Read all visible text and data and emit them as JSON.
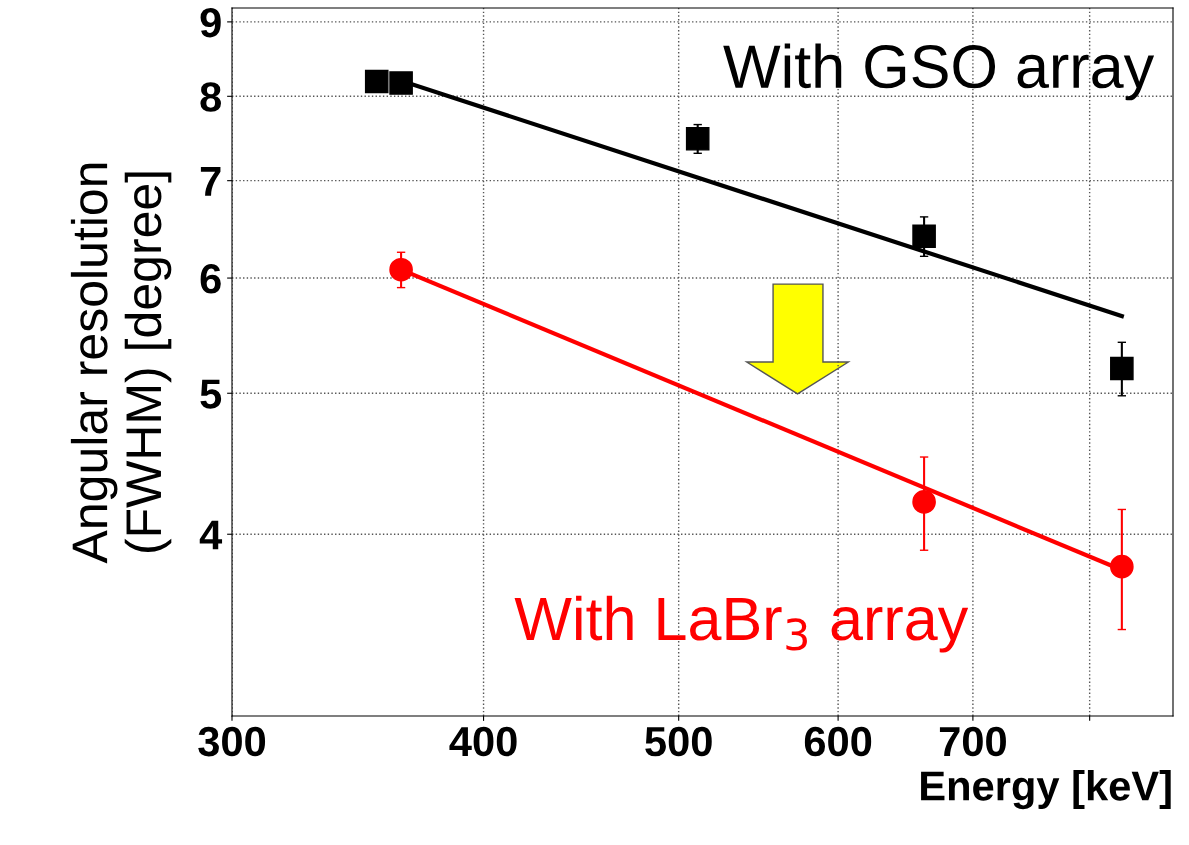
{
  "chart_data": {
    "type": "scatter",
    "xlabel": "Energy [keV]",
    "ylabel": "Angular resolution\n(FWHM) [degree]",
    "log": "xy",
    "grid": true,
    "legend": false,
    "xlim": [
      300,
      880
    ],
    "xticks": [
      300,
      400,
      500,
      600,
      700,
      {
        "value": 800,
        "label": null
      }
    ],
    "ylim": [
      3,
      9.2
    ],
    "yticks": [
      4,
      5,
      6,
      7,
      8,
      9
    ],
    "series": [
      {
        "name": "With GSO array",
        "color": "#000000",
        "marker": "square",
        "x": [
          354,
          364,
          511,
          662,
          830
        ],
        "values": [
          8.19,
          8.17,
          7.48,
          6.41,
          5.2
        ],
        "errors": [
          0.1,
          0.1,
          0.17,
          0.2,
          0.22
        ]
      },
      {
        "type": "line",
        "color": "#000000",
        "x": [
          364,
          830
        ],
        "values": [
          8.2,
          5.65
        ]
      },
      {
        "name": "With LaBr$_{3}$ array",
        "color": "#ff0000",
        "marker": "circle",
        "x": [
          364,
          662,
          830
        ],
        "values": [
          6.08,
          4.21,
          3.8
        ],
        "errors": [
          0.17,
          0.31,
          0.36
        ]
      },
      {
        "type": "line",
        "color": "#ff0000",
        "x": [
          364,
          830
        ],
        "values": [
          6.08,
          3.78
        ]
      }
    ]
  }
}
